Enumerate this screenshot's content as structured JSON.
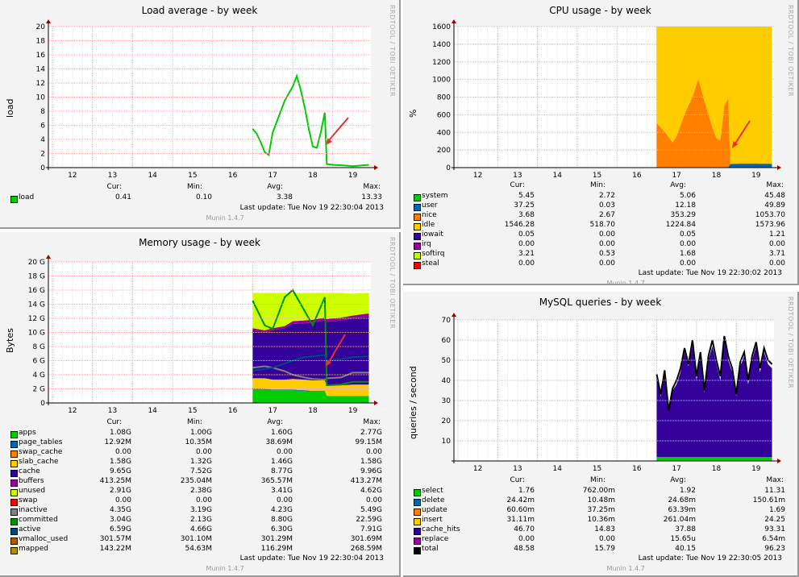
{
  "side_label": "RRDTOOL / TOBI OETIKER",
  "munin": "Munin 1.4.7",
  "columns": [
    "Cur:",
    "Min:",
    "Avg:",
    "Max:"
  ],
  "chart_data": [
    {
      "id": "load",
      "type": "line",
      "title": "Load average - by week",
      "ylabel": "load",
      "ylim": [
        0,
        20
      ],
      "yticks": [
        "0",
        "2",
        "4",
        "6",
        "8",
        "10",
        "12",
        "14",
        "16",
        "18",
        "20"
      ],
      "xticks": [
        "12",
        "13",
        "14",
        "15",
        "16",
        "17",
        "18",
        "19"
      ],
      "xlim": [
        11.4,
        19.45
      ],
      "last_update": "Last update: Tue Nov 19 22:30:04 2013",
      "series": [
        {
          "name": "load",
          "color": "#00cc00",
          "mode": "line",
          "cur": "0.41",
          "min": "0.10",
          "avg": "3.38",
          "max": "13.33",
          "x": [
            16.5,
            16.6,
            16.7,
            16.8,
            16.9,
            17,
            17.1,
            17.2,
            17.3,
            17.4,
            17.5,
            17.6,
            17.7,
            17.8,
            17.9,
            18,
            18.1,
            18.2,
            18.3,
            18.35,
            18.5,
            18.8,
            19,
            19.2,
            19.4
          ],
          "y": [
            5.5,
            4.8,
            3.6,
            2.2,
            1.8,
            5,
            6.5,
            8,
            9.5,
            10.5,
            11.5,
            13,
            11,
            8.5,
            5.5,
            3,
            2.8,
            5,
            7.8,
            0.5,
            0.4,
            0.3,
            0.2,
            0.3,
            0.4
          ]
        }
      ]
    },
    {
      "id": "cpu",
      "type": "area",
      "title": "CPU usage - by week",
      "ylabel": "%",
      "ylim": [
        0,
        1600
      ],
      "yticks": [
        "0",
        "200",
        "400",
        "600",
        "800",
        "1000",
        "1200",
        "1400",
        "1600"
      ],
      "xticks": [
        "12",
        "13",
        "14",
        "15",
        "16",
        "17",
        "18",
        "19"
      ],
      "xlim": [
        11.4,
        19.45
      ],
      "last_update": "Last update: Tue Nov 19 22:30:02 2013",
      "x": [
        16.5,
        16.7,
        16.9,
        17,
        17.2,
        17.4,
        17.55,
        17.7,
        17.9,
        18,
        18.1,
        18.2,
        18.3,
        18.35,
        18.6,
        19,
        19.4
      ],
      "series": [
        {
          "name": "system",
          "color": "#00cc00",
          "mode": "stack",
          "cur": "5.45",
          "min": "2.72",
          "avg": "5.06",
          "max": "45.48",
          "y": [
            5,
            5,
            5,
            5,
            5,
            5,
            5,
            5,
            5,
            5,
            5,
            5,
            5,
            5,
            5,
            5,
            5
          ]
        },
        {
          "name": "user",
          "color": "#0066b3",
          "mode": "stack",
          "cur": "37.25",
          "min": "0.03",
          "avg": "12.18",
          "max": "49.89",
          "y": [
            1,
            1,
            1,
            1,
            1,
            1,
            1,
            1,
            1,
            1,
            1,
            1,
            1,
            35,
            40,
            40,
            37
          ]
        },
        {
          "name": "nice",
          "color": "#ff8000",
          "mode": "stack",
          "cur": "3.68",
          "min": "2.67",
          "avg": "353.29",
          "max": "1053.70",
          "y": [
            500,
            400,
            280,
            350,
            600,
            800,
            1000,
            750,
            450,
            330,
            300,
            700,
            780,
            3,
            4,
            4,
            4
          ]
        },
        {
          "name": "idle",
          "color": "#ffcc00",
          "mode": "fill",
          "cur": "1546.28",
          "min": "518.70",
          "avg": "1224.84",
          "max": "1573.96",
          "y": [
            1600,
            1600,
            1600,
            1600,
            1600,
            1600,
            1600,
            1600,
            1600,
            1600,
            1600,
            1600,
            1600,
            1600,
            1600,
            1600,
            1600
          ]
        },
        {
          "name": "iowait",
          "color": "#330099",
          "mode": "none",
          "cur": "0.05",
          "min": "0.00",
          "avg": "0.05",
          "max": "1.21"
        },
        {
          "name": "irq",
          "color": "#990099",
          "mode": "none",
          "cur": "0.00",
          "min": "0.00",
          "avg": "0.00",
          "max": "0.00"
        },
        {
          "name": "softirq",
          "color": "#ccff00",
          "mode": "none",
          "cur": "3.21",
          "min": "0.53",
          "avg": "1.68",
          "max": "3.71"
        },
        {
          "name": "steal",
          "color": "#ff0000",
          "mode": "none",
          "cur": "0.00",
          "min": "0.00",
          "avg": "0.00",
          "max": "0.00"
        }
      ]
    },
    {
      "id": "mem",
      "type": "area",
      "title": "Memory usage - by week",
      "ylabel": "Bytes",
      "ylim": [
        0,
        20
      ],
      "yticks": [
        "0",
        "2 G",
        "4 G",
        "6 G",
        "8 G",
        "10 G",
        "12 G",
        "14 G",
        "16 G",
        "18 G",
        "20 G"
      ],
      "xticks": [
        "12",
        "13",
        "14",
        "15",
        "16",
        "17",
        "18",
        "19"
      ],
      "xlim": [
        11.4,
        19.45
      ],
      "last_update": "Last update: Tue Nov 19 22:30:04 2013",
      "x": [
        16.5,
        16.8,
        17,
        17.3,
        17.5,
        17.8,
        18,
        18.3,
        18.35,
        18.7,
        19,
        19.4
      ],
      "series": [
        {
          "name": "apps",
          "color": "#00cc00",
          "mode": "stack",
          "cur": "1.08G",
          "min": "1.00G",
          "avg": "1.60G",
          "max": "2.77G",
          "y": [
            2,
            1.9,
            1.8,
            1.8,
            1.8,
            1.7,
            1.6,
            1.6,
            1,
            1,
            1,
            1
          ]
        },
        {
          "name": "page_tables",
          "color": "#0066b3",
          "mode": "stack",
          "cur": "12.92M",
          "min": "10.35M",
          "avg": "38.69M",
          "max": "99.15M",
          "y": [
            0.1,
            0.1,
            0.1,
            0.1,
            0.1,
            0.1,
            0.1,
            0.1,
            0,
            0,
            0,
            0
          ]
        },
        {
          "name": "swap_cache",
          "color": "#ff8000",
          "mode": "none",
          "cur": "0.00",
          "min": "0.00",
          "avg": "0.00",
          "max": "0.00"
        },
        {
          "name": "slab_cache",
          "color": "#ffcc00",
          "mode": "stack",
          "cur": "1.58G",
          "min": "1.32G",
          "avg": "1.46G",
          "max": "1.58G",
          "y": [
            1.4,
            1.5,
            1.4,
            1.4,
            1.5,
            1.5,
            1.5,
            1.5,
            1.5,
            1.5,
            1.6,
            1.6
          ]
        },
        {
          "name": "cache",
          "color": "#330099",
          "mode": "stack",
          "cur": "9.65G",
          "min": "7.52G",
          "avg": "8.77G",
          "max": "9.96G",
          "y": [
            6.8,
            6.5,
            7,
            7.3,
            7.8,
            8,
            8.2,
            8.5,
            9,
            9.2,
            9.4,
            9.7
          ]
        },
        {
          "name": "buffers",
          "color": "#990099",
          "mode": "stack",
          "cur": "413.25M",
          "min": "235.04M",
          "avg": "365.57M",
          "max": "413.27M",
          "y": [
            0.3,
            0.3,
            0.3,
            0.3,
            0.4,
            0.4,
            0.4,
            0.4,
            0.4,
            0.4,
            0.4,
            0.4
          ]
        },
        {
          "name": "unused",
          "color": "#ccff00",
          "mode": "stack",
          "cur": "2.91G",
          "min": "2.38G",
          "avg": "3.41G",
          "max": "4.62G",
          "y": [
            5,
            5.3,
            5,
            4.7,
            4,
            3.9,
            3.8,
            3.5,
            3.7,
            3.5,
            3.1,
            2.9
          ]
        },
        {
          "name": "swap",
          "color": "#ff0000",
          "mode": "none",
          "cur": "0.00",
          "min": "0.00",
          "avg": "0.00",
          "max": "0.00"
        },
        {
          "name": "inactive",
          "color": "#808080",
          "mode": "line",
          "cur": "4.35G",
          "min": "3.19G",
          "avg": "4.23G",
          "max": "5.49G",
          "y": [
            5,
            5.2,
            5,
            4.5,
            4,
            3.6,
            3.4,
            3.3,
            3.5,
            3.6,
            4.3,
            4.3
          ]
        },
        {
          "name": "committed",
          "color": "#008f00",
          "mode": "line",
          "cur": "3.04G",
          "min": "2.13G",
          "avg": "8.80G",
          "max": "22.59G",
          "y": [
            14.5,
            11,
            10.5,
            15,
            16,
            13,
            11,
            15,
            2.5,
            2.6,
            3,
            3
          ]
        },
        {
          "name": "active",
          "color": "#00487d",
          "mode": "line",
          "cur": "6.59G",
          "min": "4.66G",
          "avg": "6.30G",
          "max": "7.91G",
          "y": [
            4.6,
            4.8,
            5,
            5.6,
            6,
            6.5,
            6.6,
            6.8,
            6,
            6.2,
            6.5,
            6.6
          ]
        },
        {
          "name": "vmalloc_used",
          "color": "#b35a00",
          "mode": "none",
          "cur": "301.57M",
          "min": "301.10M",
          "avg": "301.29M",
          "max": "301.69M"
        },
        {
          "name": "mapped",
          "color": "#b38f00",
          "mode": "none",
          "cur": "143.22M",
          "min": "54.63M",
          "avg": "116.29M",
          "max": "268.59M"
        }
      ]
    },
    {
      "id": "mysql",
      "type": "area",
      "title": "MySQL queries - by week",
      "ylabel": "queries / second",
      "ylim": [
        0,
        70
      ],
      "yticks": [
        "10",
        "20",
        "30",
        "40",
        "50",
        "60",
        "70"
      ],
      "xticks": [
        "12",
        "13",
        "14",
        "15",
        "16",
        "17",
        "18",
        "19"
      ],
      "xlim": [
        11.4,
        19.45
      ],
      "last_update": "Last update: Tue Nov 19 22:30:05 2013",
      "x": [
        16.5,
        16.6,
        16.7,
        16.8,
        16.9,
        17,
        17.1,
        17.2,
        17.3,
        17.4,
        17.5,
        17.6,
        17.7,
        17.8,
        17.9,
        18,
        18.1,
        18.2,
        18.3,
        18.4,
        18.5,
        18.6,
        18.7,
        18.8,
        18.9,
        19,
        19.1,
        19.2,
        19.3,
        19.4
      ],
      "series": [
        {
          "name": "select",
          "color": "#00cc00",
          "mode": "stack",
          "cur": "1.76",
          "min": "762.00m",
          "avg": "1.92",
          "max": "11.31",
          "y": [
            2,
            2,
            2,
            2,
            2,
            2,
            2,
            2,
            2,
            2,
            2,
            2,
            2,
            2,
            2,
            2,
            2,
            2,
            2,
            2,
            2,
            2,
            2,
            2,
            2,
            2,
            2,
            2,
            2,
            2
          ]
        },
        {
          "name": "delete",
          "color": "#0066b3",
          "mode": "none",
          "cur": "24.42m",
          "min": "10.48m",
          "avg": "24.68m",
          "max": "150.61m"
        },
        {
          "name": "update",
          "color": "#ff8000",
          "mode": "none",
          "cur": "60.60m",
          "min": "37.25m",
          "avg": "63.39m",
          "max": "1.69"
        },
        {
          "name": "insert",
          "color": "#ffcc00",
          "mode": "none",
          "cur": "31.11m",
          "min": "10.36m",
          "avg": "261.04m",
          "max": "24.25"
        },
        {
          "name": "cache_hits",
          "color": "#330099",
          "mode": "stack",
          "cur": "46.70",
          "min": "14.83",
          "avg": "37.88",
          "max": "93.31",
          "y": [
            40,
            30,
            42,
            23,
            33,
            36,
            42,
            52,
            45,
            55,
            38,
            50,
            32,
            48,
            55,
            46,
            38,
            58,
            48,
            42,
            30,
            45,
            50,
            36,
            48,
            55,
            42,
            52,
            46,
            44
          ]
        },
        {
          "name": "replace",
          "color": "#990099",
          "mode": "none",
          "cur": "0.00",
          "min": "0.00",
          "avg": "15.65u",
          "max": "6.54m"
        },
        {
          "name": "total",
          "color": "#000000",
          "mode": "line",
          "cur": "48.58",
          "min": "15.79",
          "avg": "40.15",
          "max": "96.23",
          "y": [
            43,
            33,
            45,
            25,
            36,
            40,
            46,
            56,
            48,
            60,
            42,
            54,
            35,
            52,
            60,
            50,
            42,
            62,
            52,
            46,
            33,
            49,
            54,
            40,
            52,
            59,
            46,
            56,
            50,
            48
          ]
        }
      ]
    }
  ]
}
